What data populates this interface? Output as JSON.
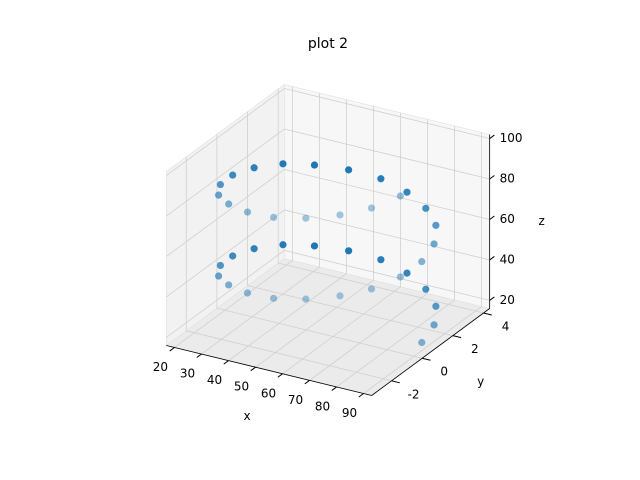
{
  "chart_data": {
    "type": "scatter3d",
    "title": "plot 2",
    "xlabel": "x",
    "ylabel": "y",
    "zlabel": "z",
    "color": "#1f77b4",
    "x": [
      90,
      88.3,
      83.3,
      75.6,
      65.8,
      55,
      44.2,
      34.4,
      26.7,
      21.7,
      20,
      21.7,
      26.7,
      34.4,
      44.2,
      55,
      65.8,
      75.6,
      83.3,
      88.3,
      90,
      88.3,
      83.3,
      75.6,
      65.8,
      55,
      44.2,
      34.4,
      26.7,
      21.7,
      20,
      21.7,
      26.7,
      34.4,
      44.2,
      55,
      65.8,
      75.6,
      83.3,
      88.3
    ],
    "y": [
      0.5,
      1.6,
      2.6,
      3.3,
      3.8,
      4,
      3.8,
      3.3,
      2.6,
      1.6,
      0.5,
      -0.6,
      -1.6,
      -2.3,
      -2.8,
      -3,
      -2.8,
      -2.3,
      -1.6,
      -0.6,
      0.5,
      1.6,
      2.6,
      3.3,
      3.8,
      4,
      3.8,
      3.3,
      2.6,
      1.6,
      0.5,
      -0.6,
      -1.6,
      -2.3,
      -2.8,
      -3,
      -2.8,
      -2.3,
      -1.6,
      -0.6
    ],
    "z": [
      20,
      22,
      24,
      26,
      28,
      30,
      32,
      34,
      36,
      38,
      40,
      42,
      44,
      46,
      48,
      50,
      52,
      54,
      56,
      58,
      60,
      62,
      64,
      66,
      68,
      70,
      72,
      74,
      76,
      78,
      80,
      82,
      84,
      86,
      88,
      90,
      92,
      94,
      96,
      98
    ],
    "xlim": [
      17,
      93
    ],
    "ylim": [
      -3.3,
      4.4
    ],
    "zlim": [
      16,
      102
    ],
    "xticks": [
      20,
      30,
      40,
      50,
      60,
      70,
      80,
      90
    ],
    "yticks": [
      -2,
      0,
      2,
      4
    ],
    "zticks": [
      20,
      40,
      60,
      80,
      100
    ]
  }
}
